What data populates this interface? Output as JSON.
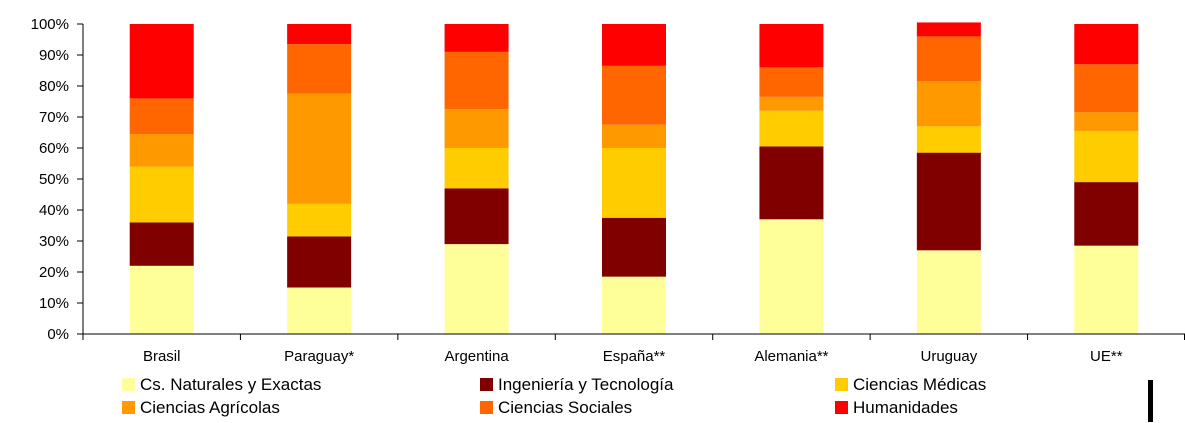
{
  "chart_data": {
    "type": "bar",
    "stacked": true,
    "percent": true,
    "title": "",
    "xlabel": "",
    "ylabel": "",
    "ylim": [
      0,
      100
    ],
    "yticks": [
      "0%",
      "10%",
      "20%",
      "30%",
      "40%",
      "50%",
      "60%",
      "70%",
      "80%",
      "90%",
      "100%"
    ],
    "grid": false,
    "legend_position": "bottom",
    "categories": [
      "Brasil",
      "Paraguay*",
      "Argentina",
      "España**",
      "Alemania**",
      "Uruguay",
      "UE**"
    ],
    "series": [
      {
        "name": "Cs. Naturales y Exactas",
        "color": "#FFFF99",
        "values": [
          22,
          15,
          29,
          18.5,
          37,
          27,
          28.5
        ]
      },
      {
        "name": "Ingeniería y Tecnología",
        "color": "#800000",
        "values": [
          14,
          16.5,
          18,
          19,
          23.5,
          31.5,
          20.5
        ]
      },
      {
        "name": "Ciencias Médicas",
        "color": "#FFCC00",
        "values": [
          18,
          10.5,
          13,
          22.5,
          11.5,
          8.5,
          16.5
        ]
      },
      {
        "name": "Ciencias Agrícolas",
        "color": "#FF9900",
        "values": [
          10.5,
          35.5,
          12.5,
          7.5,
          4.5,
          14.5,
          6
        ]
      },
      {
        "name": "Ciencias Sociales",
        "color": "#FF6600",
        "values": [
          11.5,
          16,
          18.5,
          19,
          9.5,
          14.5,
          15.5
        ]
      },
      {
        "name": "Humanidades",
        "color": "#FF0000",
        "values": [
          24,
          6.5,
          9,
          13.5,
          14,
          4.5,
          13
        ]
      }
    ]
  }
}
